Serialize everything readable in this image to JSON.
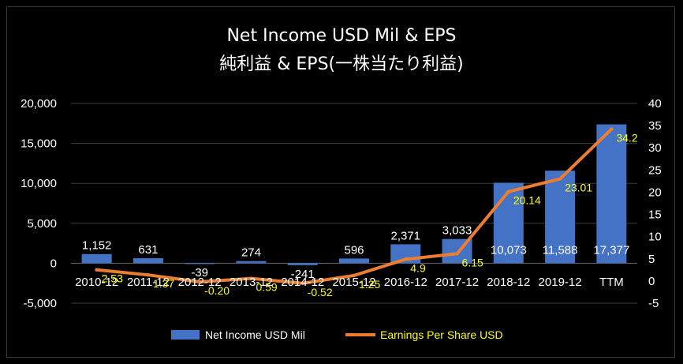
{
  "chart_data": {
    "type": "bar",
    "title": "Net Income USD Mil & EPS",
    "subtitle": "純利益 & EPS(一株当たり利益)",
    "categories": [
      "2010-12",
      "2011-12",
      "2012-12",
      "2013-12",
      "2014-12",
      "2015-12",
      "2016-12",
      "2017-12",
      "2018-12",
      "2019-12",
      "TTM"
    ],
    "series": [
      {
        "name": "Net Income USD Mil",
        "type": "bar",
        "axis": "left",
        "color": "#4472C4",
        "values": [
          1152,
          631,
          -39,
          274,
          -241,
          596,
          2371,
          3033,
          10073,
          11588,
          17377
        ],
        "labels": [
          "1,152",
          "631",
          "-39",
          "274",
          "-241",
          "596",
          "2,371",
          "3,033",
          "10,073",
          "11,588",
          "17,377"
        ]
      },
      {
        "name": "Earnings Per Share USD",
        "type": "line",
        "axis": "right",
        "color": "#ED7D31",
        "values": [
          2.53,
          1.37,
          -0.2,
          0.59,
          -0.52,
          1.25,
          4.9,
          6.15,
          20.14,
          23.01,
          34.2
        ],
        "labels": [
          "2.53",
          "1.37",
          "-0.20",
          "0.59",
          "-0.52",
          "1.25",
          "4.9",
          "6.15",
          "20.14",
          "23.01",
          "34.2"
        ]
      }
    ],
    "ylim_left": [
      -5000,
      20000
    ],
    "yticks_left": [
      "20,000",
      "15,000",
      "10,000",
      "5,000",
      "0",
      "-5,000"
    ],
    "ylim_right": [
      -5,
      40
    ],
    "yticks_right": [
      "40",
      "35",
      "30",
      "25",
      "20",
      "15",
      "10",
      "5",
      "0",
      "-5"
    ],
    "grid": true,
    "legend_position": "bottom"
  }
}
